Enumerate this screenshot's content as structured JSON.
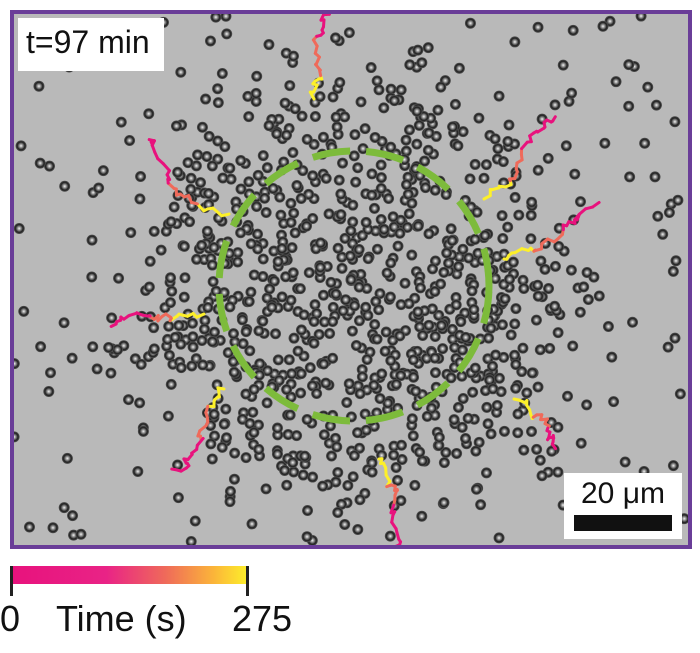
{
  "panel": {
    "time_label": "t=97 min",
    "scale_bar_label": "20 μm",
    "frame_color": "#6a3d98",
    "circle_color": "#7dbb3b"
  },
  "colorbar": {
    "min": "0",
    "max": "275",
    "label": "Time (s)",
    "colors": [
      "#e8127d",
      "#ef6a5a",
      "#fdf02a"
    ]
  }
}
